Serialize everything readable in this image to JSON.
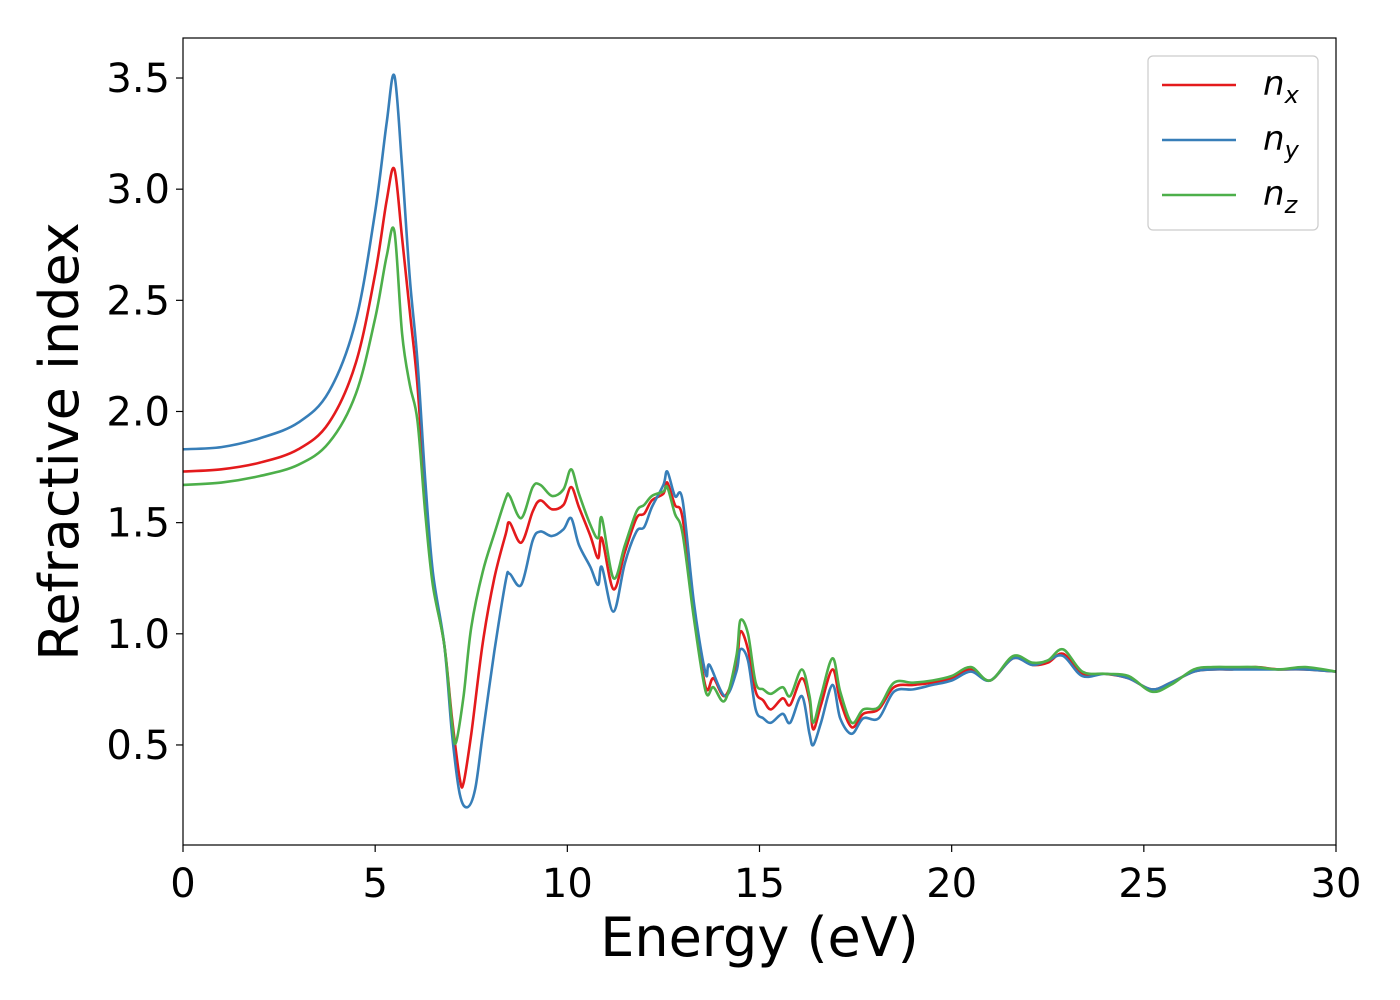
{
  "chart_data": {
    "type": "line",
    "title": "",
    "xlabel": "Energy (eV)",
    "ylabel": "Refractive index",
    "xlim": [
      0,
      30
    ],
    "ylim": [
      0.05,
      3.68
    ],
    "xticks": [
      0,
      5,
      10,
      15,
      20,
      25,
      30
    ],
    "xtick_labels": [
      "0",
      "5",
      "10",
      "15",
      "20",
      "25",
      "30"
    ],
    "yticks": [
      0.5,
      1.0,
      1.5,
      2.0,
      2.5,
      3.0,
      3.5
    ],
    "ytick_labels": [
      "0.5",
      "1.0",
      "1.5",
      "2.0",
      "2.5",
      "3.0",
      "3.5"
    ],
    "grid": false,
    "legend_position": "top-right",
    "series": [
      {
        "name": "n",
        "sub": "x",
        "color": "#e41a1c",
        "points": [
          [
            0,
            1.73
          ],
          [
            1,
            1.74
          ],
          [
            2,
            1.77
          ],
          [
            3,
            1.83
          ],
          [
            3.8,
            1.95
          ],
          [
            4.5,
            2.22
          ],
          [
            5.0,
            2.62
          ],
          [
            5.3,
            2.95
          ],
          [
            5.5,
            3.09
          ],
          [
            5.7,
            2.78
          ],
          [
            5.9,
            2.45
          ],
          [
            6.1,
            2.12
          ],
          [
            6.3,
            1.62
          ],
          [
            6.5,
            1.24
          ],
          [
            6.8,
            0.95
          ],
          [
            7.0,
            0.62
          ],
          [
            7.2,
            0.35
          ],
          [
            7.3,
            0.33
          ],
          [
            7.5,
            0.55
          ],
          [
            7.8,
            0.96
          ],
          [
            8.1,
            1.25
          ],
          [
            8.4,
            1.45
          ],
          [
            8.5,
            1.5
          ],
          [
            8.8,
            1.41
          ],
          [
            9.1,
            1.55
          ],
          [
            9.3,
            1.6
          ],
          [
            9.6,
            1.56
          ],
          [
            9.9,
            1.58
          ],
          [
            10.1,
            1.66
          ],
          [
            10.3,
            1.57
          ],
          [
            10.6,
            1.44
          ],
          [
            10.8,
            1.34
          ],
          [
            10.9,
            1.43
          ],
          [
            11.2,
            1.2
          ],
          [
            11.5,
            1.37
          ],
          [
            11.8,
            1.52
          ],
          [
            12.0,
            1.54
          ],
          [
            12.2,
            1.6
          ],
          [
            12.5,
            1.63
          ],
          [
            12.6,
            1.68
          ],
          [
            12.8,
            1.58
          ],
          [
            13.0,
            1.52
          ],
          [
            13.3,
            1.09
          ],
          [
            13.6,
            0.76
          ],
          [
            13.8,
            0.8
          ],
          [
            14.1,
            0.72
          ],
          [
            14.4,
            0.86
          ],
          [
            14.5,
            1.01
          ],
          [
            14.7,
            0.93
          ],
          [
            14.9,
            0.74
          ],
          [
            15.1,
            0.7
          ],
          [
            15.3,
            0.66
          ],
          [
            15.6,
            0.71
          ],
          [
            15.8,
            0.68
          ],
          [
            16.1,
            0.8
          ],
          [
            16.3,
            0.7
          ],
          [
            16.4,
            0.57
          ],
          [
            16.6,
            0.68
          ],
          [
            16.9,
            0.84
          ],
          [
            17.1,
            0.7
          ],
          [
            17.4,
            0.58
          ],
          [
            17.7,
            0.64
          ],
          [
            18.1,
            0.66
          ],
          [
            18.5,
            0.76
          ],
          [
            19,
            0.77
          ],
          [
            19.5,
            0.78
          ],
          [
            20,
            0.8
          ],
          [
            20.5,
            0.84
          ],
          [
            21,
            0.79
          ],
          [
            21.6,
            0.89
          ],
          [
            22.1,
            0.86
          ],
          [
            22.5,
            0.87
          ],
          [
            22.9,
            0.91
          ],
          [
            23.4,
            0.82
          ],
          [
            24,
            0.82
          ],
          [
            24.6,
            0.8
          ],
          [
            25.2,
            0.75
          ],
          [
            25.7,
            0.78
          ],
          [
            26.3,
            0.83
          ],
          [
            26.8,
            0.84
          ],
          [
            27.3,
            0.84
          ],
          [
            27.9,
            0.85
          ],
          [
            28.5,
            0.84
          ],
          [
            29.2,
            0.84
          ],
          [
            30,
            0.83
          ]
        ]
      },
      {
        "name": "n",
        "sub": "y",
        "color": "#377eb8",
        "points": [
          [
            0,
            1.83
          ],
          [
            1,
            1.84
          ],
          [
            2,
            1.88
          ],
          [
            3,
            1.95
          ],
          [
            3.8,
            2.09
          ],
          [
            4.5,
            2.41
          ],
          [
            5.0,
            2.9
          ],
          [
            5.3,
            3.3
          ],
          [
            5.5,
            3.51
          ],
          [
            5.7,
            3.1
          ],
          [
            5.9,
            2.6
          ],
          [
            6.1,
            2.23
          ],
          [
            6.3,
            1.7
          ],
          [
            6.5,
            1.28
          ],
          [
            6.8,
            0.95
          ],
          [
            7.0,
            0.55
          ],
          [
            7.2,
            0.28
          ],
          [
            7.4,
            0.22
          ],
          [
            7.6,
            0.3
          ],
          [
            7.8,
            0.55
          ],
          [
            8.1,
            0.92
          ],
          [
            8.4,
            1.24
          ],
          [
            8.5,
            1.27
          ],
          [
            8.8,
            1.22
          ],
          [
            9.1,
            1.42
          ],
          [
            9.3,
            1.46
          ],
          [
            9.6,
            1.44
          ],
          [
            9.9,
            1.47
          ],
          [
            10.1,
            1.52
          ],
          [
            10.3,
            1.4
          ],
          [
            10.6,
            1.3
          ],
          [
            10.8,
            1.22
          ],
          [
            10.9,
            1.3
          ],
          [
            11.2,
            1.1
          ],
          [
            11.5,
            1.32
          ],
          [
            11.8,
            1.46
          ],
          [
            12.0,
            1.48
          ],
          [
            12.2,
            1.57
          ],
          [
            12.5,
            1.67
          ],
          [
            12.6,
            1.73
          ],
          [
            12.8,
            1.62
          ],
          [
            13.0,
            1.6
          ],
          [
            13.3,
            1.13
          ],
          [
            13.6,
            0.82
          ],
          [
            13.7,
            0.86
          ],
          [
            14.1,
            0.72
          ],
          [
            14.4,
            0.83
          ],
          [
            14.5,
            0.93
          ],
          [
            14.7,
            0.88
          ],
          [
            14.9,
            0.66
          ],
          [
            15.1,
            0.62
          ],
          [
            15.3,
            0.6
          ],
          [
            15.6,
            0.64
          ],
          [
            15.8,
            0.6
          ],
          [
            16.1,
            0.72
          ],
          [
            16.3,
            0.55
          ],
          [
            16.4,
            0.5
          ],
          [
            16.6,
            0.6
          ],
          [
            16.9,
            0.77
          ],
          [
            17.1,
            0.62
          ],
          [
            17.4,
            0.55
          ],
          [
            17.7,
            0.62
          ],
          [
            18.1,
            0.62
          ],
          [
            18.5,
            0.74
          ],
          [
            19,
            0.75
          ],
          [
            19.5,
            0.77
          ],
          [
            20,
            0.79
          ],
          [
            20.5,
            0.83
          ],
          [
            21,
            0.79
          ],
          [
            21.6,
            0.89
          ],
          [
            22.1,
            0.86
          ],
          [
            22.5,
            0.88
          ],
          [
            22.9,
            0.9
          ],
          [
            23.4,
            0.81
          ],
          [
            24,
            0.82
          ],
          [
            24.6,
            0.8
          ],
          [
            25.2,
            0.75
          ],
          [
            25.7,
            0.78
          ],
          [
            26.3,
            0.83
          ],
          [
            26.8,
            0.84
          ],
          [
            27.3,
            0.84
          ],
          [
            27.9,
            0.84
          ],
          [
            28.5,
            0.84
          ],
          [
            29.2,
            0.84
          ],
          [
            30,
            0.83
          ]
        ]
      },
      {
        "name": "n",
        "sub": "z",
        "color": "#4daf4a",
        "points": [
          [
            0,
            1.67
          ],
          [
            1,
            1.68
          ],
          [
            2,
            1.71
          ],
          [
            3,
            1.76
          ],
          [
            3.8,
            1.86
          ],
          [
            4.5,
            2.08
          ],
          [
            5.0,
            2.42
          ],
          [
            5.3,
            2.7
          ],
          [
            5.5,
            2.81
          ],
          [
            5.7,
            2.35
          ],
          [
            5.9,
            2.12
          ],
          [
            6.1,
            1.96
          ],
          [
            6.3,
            1.55
          ],
          [
            6.5,
            1.22
          ],
          [
            6.8,
            0.95
          ],
          [
            7.0,
            0.6
          ],
          [
            7.1,
            0.51
          ],
          [
            7.3,
            0.72
          ],
          [
            7.5,
            1.03
          ],
          [
            7.8,
            1.28
          ],
          [
            8.1,
            1.45
          ],
          [
            8.4,
            1.61
          ],
          [
            8.5,
            1.62
          ],
          [
            8.8,
            1.52
          ],
          [
            9.1,
            1.66
          ],
          [
            9.3,
            1.67
          ],
          [
            9.6,
            1.62
          ],
          [
            9.9,
            1.65
          ],
          [
            10.1,
            1.74
          ],
          [
            10.3,
            1.63
          ],
          [
            10.6,
            1.49
          ],
          [
            10.8,
            1.43
          ],
          [
            10.9,
            1.52
          ],
          [
            11.2,
            1.25
          ],
          [
            11.5,
            1.4
          ],
          [
            11.8,
            1.55
          ],
          [
            12.0,
            1.58
          ],
          [
            12.2,
            1.62
          ],
          [
            12.5,
            1.64
          ],
          [
            12.6,
            1.66
          ],
          [
            12.8,
            1.54
          ],
          [
            13.0,
            1.45
          ],
          [
            13.3,
            1.06
          ],
          [
            13.6,
            0.74
          ],
          [
            13.8,
            0.76
          ],
          [
            14.1,
            0.7
          ],
          [
            14.4,
            0.9
          ],
          [
            14.5,
            1.06
          ],
          [
            14.7,
            1.0
          ],
          [
            14.9,
            0.78
          ],
          [
            15.1,
            0.75
          ],
          [
            15.3,
            0.73
          ],
          [
            15.6,
            0.76
          ],
          [
            15.8,
            0.72
          ],
          [
            16.1,
            0.84
          ],
          [
            16.3,
            0.72
          ],
          [
            16.4,
            0.6
          ],
          [
            16.6,
            0.72
          ],
          [
            16.9,
            0.89
          ],
          [
            17.1,
            0.74
          ],
          [
            17.4,
            0.6
          ],
          [
            17.7,
            0.66
          ],
          [
            18.1,
            0.67
          ],
          [
            18.5,
            0.78
          ],
          [
            19,
            0.78
          ],
          [
            19.5,
            0.79
          ],
          [
            20,
            0.81
          ],
          [
            20.5,
            0.85
          ],
          [
            21,
            0.79
          ],
          [
            21.6,
            0.9
          ],
          [
            22.1,
            0.87
          ],
          [
            22.5,
            0.88
          ],
          [
            22.9,
            0.93
          ],
          [
            23.4,
            0.83
          ],
          [
            24,
            0.82
          ],
          [
            24.6,
            0.81
          ],
          [
            25.2,
            0.74
          ],
          [
            25.7,
            0.77
          ],
          [
            26.3,
            0.84
          ],
          [
            26.8,
            0.85
          ],
          [
            27.3,
            0.85
          ],
          [
            27.9,
            0.85
          ],
          [
            28.5,
            0.84
          ],
          [
            29.2,
            0.85
          ],
          [
            30,
            0.83
          ]
        ]
      }
    ]
  }
}
